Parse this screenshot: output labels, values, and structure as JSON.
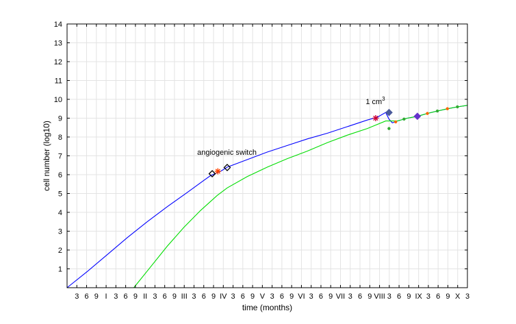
{
  "chart_data": {
    "type": "line",
    "xlabel": "time (months)",
    "ylabel": "cell number (log10)",
    "xlim": [
      0,
      120
    ],
    "ylim": [
      0,
      14
    ],
    "grid": true,
    "x_tick_labels": [
      "3",
      "6",
      "9",
      "I",
      "3",
      "6",
      "9",
      "II",
      "3",
      "6",
      "9",
      "III",
      "3",
      "6",
      "9",
      "IV",
      "3",
      "6",
      "9",
      "V",
      "3",
      "6",
      "9",
      "VI",
      "3",
      "6",
      "9",
      "VII",
      "3",
      "6",
      "9",
      "VIII",
      "3",
      "6",
      "9",
      "IX",
      "3",
      "6",
      "9",
      "X",
      "3"
    ],
    "y_tick_labels": [
      "1",
      "2",
      "3",
      "4",
      "5",
      "6",
      "7",
      "8",
      "9",
      "10",
      "11",
      "12",
      "13",
      "14"
    ],
    "series": [
      {
        "color": "#0000ff",
        "x": [
          0,
          6,
          12,
          18,
          24,
          30,
          36,
          41,
          43,
          46,
          48,
          54,
          60,
          66,
          72,
          78,
          84,
          90,
          93,
          95.5,
          96.5,
          97.5,
          99,
          102,
          105,
          108,
          111,
          114,
          117,
          120
        ],
        "y": [
          0,
          0.85,
          1.75,
          2.65,
          3.5,
          4.3,
          5.05,
          5.7,
          5.95,
          6.18,
          6.4,
          6.8,
          7.2,
          7.55,
          7.9,
          8.2,
          8.55,
          8.9,
          9.05,
          9.3,
          8.95,
          8.75,
          8.85,
          9.0,
          9.1,
          9.25,
          9.38,
          9.5,
          9.6,
          9.68
        ]
      },
      {
        "color": "#00dd00",
        "x": [
          20,
          25,
          30,
          35,
          40,
          45,
          48,
          54,
          60,
          66,
          72,
          78,
          84,
          90,
          95.5,
          99,
          102,
          105,
          108,
          111,
          114,
          117,
          120
        ],
        "y": [
          0,
          1.1,
          2.2,
          3.2,
          4.1,
          4.9,
          5.3,
          5.9,
          6.4,
          6.85,
          7.25,
          7.7,
          8.1,
          8.45,
          8.85,
          8.85,
          9.0,
          9.1,
          9.25,
          9.38,
          9.5,
          9.6,
          9.68
        ]
      }
    ],
    "markers": [
      {
        "type": "diamond",
        "x": 43.5,
        "y": 6.05,
        "color": "#000000"
      },
      {
        "type": "star",
        "x": 45.2,
        "y": 6.18,
        "color": "#ff4400"
      },
      {
        "type": "diamond",
        "x": 48,
        "y": 6.38,
        "color": "#000000"
      },
      {
        "type": "star",
        "x": 92.5,
        "y": 9.0,
        "color": "#cc0033"
      },
      {
        "type": "diamond",
        "x": 96.5,
        "y": 9.3,
        "color": "#4a5a9a"
      },
      {
        "type": "dot",
        "x": 96.5,
        "y": 8.45,
        "color": "#33aa33"
      },
      {
        "type": "dot",
        "x": 98.5,
        "y": 8.8,
        "color": "#ff6600"
      },
      {
        "type": "dot",
        "x": 101,
        "y": 8.95,
        "color": "#33aa33"
      },
      {
        "type": "diamond",
        "x": 105,
        "y": 9.1,
        "color": "#6633cc"
      },
      {
        "type": "dot",
        "x": 108,
        "y": 9.25,
        "color": "#ff6600"
      },
      {
        "type": "dot",
        "x": 111,
        "y": 9.38,
        "color": "#33aa33"
      },
      {
        "type": "dot",
        "x": 114,
        "y": 9.5,
        "color": "#ff6600"
      },
      {
        "type": "dot",
        "x": 117,
        "y": 9.6,
        "color": "#33aa33"
      }
    ],
    "annotations": [
      {
        "text": "angiogenic switch",
        "x": 39,
        "y": 7.05
      },
      {
        "text": "1 cm",
        "superscript": "3",
        "x": 89.5,
        "y": 9.75
      }
    ]
  }
}
